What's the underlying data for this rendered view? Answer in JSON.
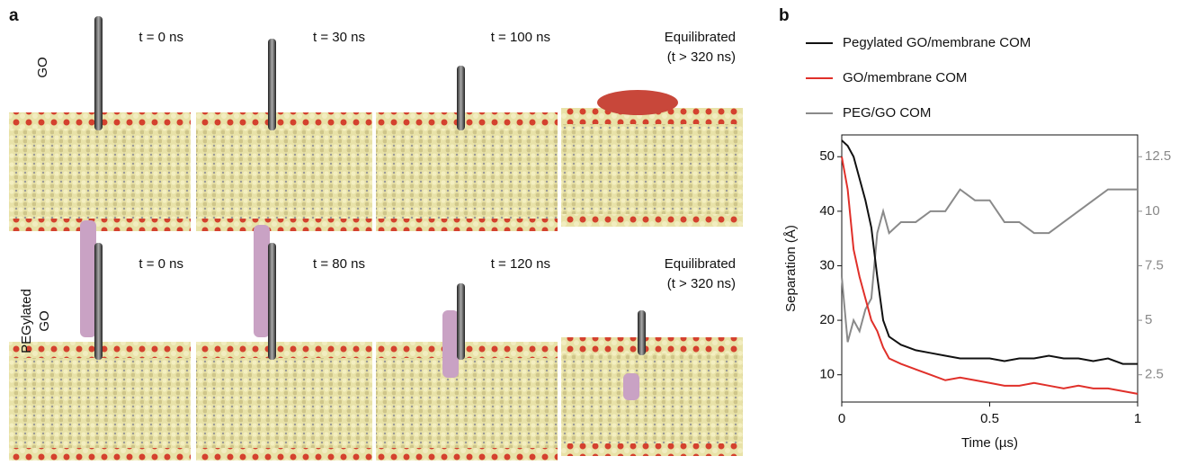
{
  "panel_a": {
    "label": "a",
    "rows": [
      {
        "label": [
          "GO"
        ],
        "times": [
          "t = 0 ns",
          "t = 30 ns",
          "t = 100 ns"
        ],
        "final": [
          "Equilibrated",
          "(t > 320 ns)"
        ]
      },
      {
        "label": [
          "PEGylated",
          "GO"
        ],
        "times": [
          "t = 0 ns",
          "t = 80 ns",
          "t = 120 ns"
        ],
        "final": [
          "Equilibrated",
          "(t > 320 ns)"
        ]
      }
    ]
  },
  "chart_data": {
    "type": "line",
    "panel_label": "b",
    "x_label": "Time (µs)",
    "y_label": "Separation (Å)",
    "x": [
      0,
      0.02,
      0.04,
      0.06,
      0.08,
      0.1,
      0.12,
      0.14,
      0.16,
      0.2,
      0.25,
      0.3,
      0.35,
      0.4,
      0.45,
      0.5,
      0.55,
      0.6,
      0.65,
      0.7,
      0.75,
      0.8,
      0.85,
      0.9,
      0.95,
      1
    ],
    "series": [
      {
        "name": "Pegylated GO/membrane COM",
        "color": "#111111",
        "values": [
          53,
          52,
          50,
          46,
          42,
          37,
          28,
          20,
          17,
          15.5,
          14.5,
          14,
          13.5,
          13,
          13,
          13,
          12.5,
          13,
          13,
          13.5,
          13,
          13,
          12.5,
          13,
          12,
          12
        ]
      },
      {
        "name": "GO/membrane COM",
        "color": "#e0302a",
        "values": [
          50,
          44,
          33,
          28,
          24,
          20,
          18,
          15,
          13,
          12,
          11,
          10,
          9,
          9.5,
          9,
          8.5,
          8,
          8,
          8.5,
          8,
          7.5,
          8,
          7.5,
          7.5,
          7,
          6.5
        ]
      },
      {
        "name": "PEG/GO COM",
        "color": "#8a8a8a",
        "axis": "y2",
        "values": [
          7,
          4,
          5,
          4.5,
          5.5,
          6,
          9,
          10,
          9,
          9.5,
          9.5,
          10,
          10,
          11,
          10.5,
          10.5,
          9.5,
          9.5,
          9,
          9,
          9.5,
          10,
          10.5,
          11,
          11,
          11
        ]
      }
    ],
    "xlim": [
      0,
      1
    ],
    "xticks": [
      0,
      0.5,
      1
    ],
    "ylim": [
      5,
      54
    ],
    "yticks": [
      10,
      20,
      30,
      40,
      50
    ],
    "y2lim": [
      1.25,
      13.5
    ],
    "y2ticks": [
      2.5,
      5,
      7.5,
      10,
      12.5
    ]
  }
}
